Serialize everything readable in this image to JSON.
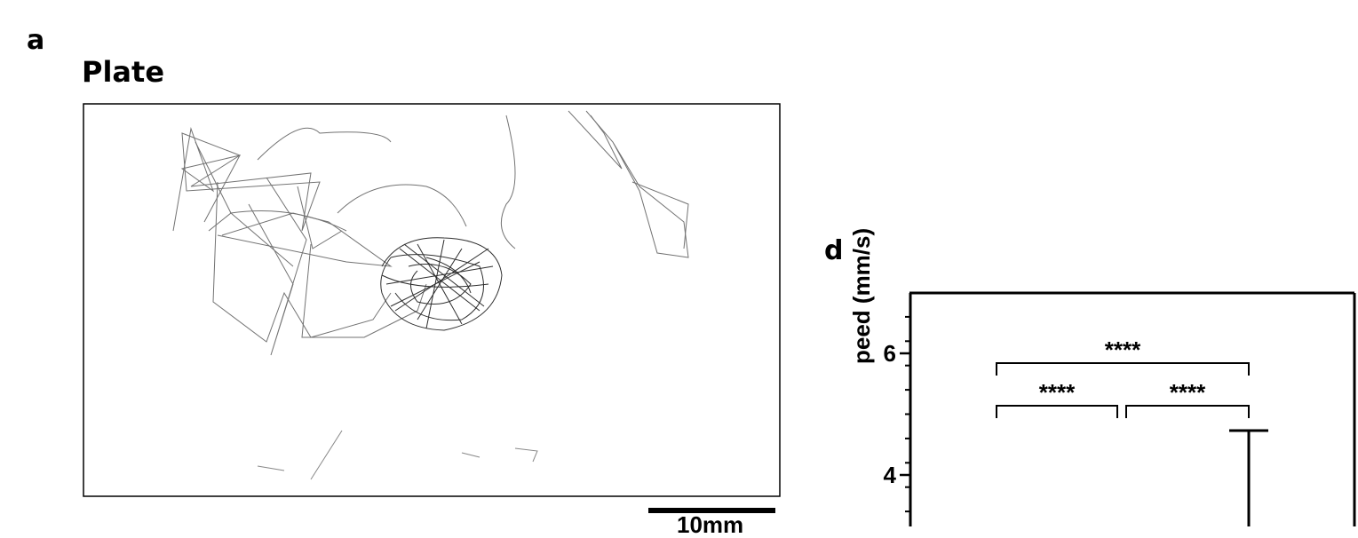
{
  "panels": {
    "a": {
      "letter": "a",
      "title": "Plate",
      "scale_bar_label": "10mm"
    },
    "d": {
      "letter": "d"
    }
  },
  "chart_data": {
    "type": "bar",
    "ylabel": "Speed (mm/s)",
    "visible_ylabel": "peed (mm/s)",
    "ylim": [
      2.9,
      7.0
    ],
    "yticks_major": [
      4,
      6
    ],
    "ytick_labels": [
      "4",
      "6"
    ],
    "error_bar_top": 4.73,
    "significance": [
      {
        "label": "****",
        "span": "group1-group2"
      },
      {
        "label": "****",
        "span": "group2-group3"
      },
      {
        "label": "****",
        "span": "group1-group3"
      }
    ]
  },
  "colors": {
    "ink": "#000000",
    "trace": "#555555"
  }
}
